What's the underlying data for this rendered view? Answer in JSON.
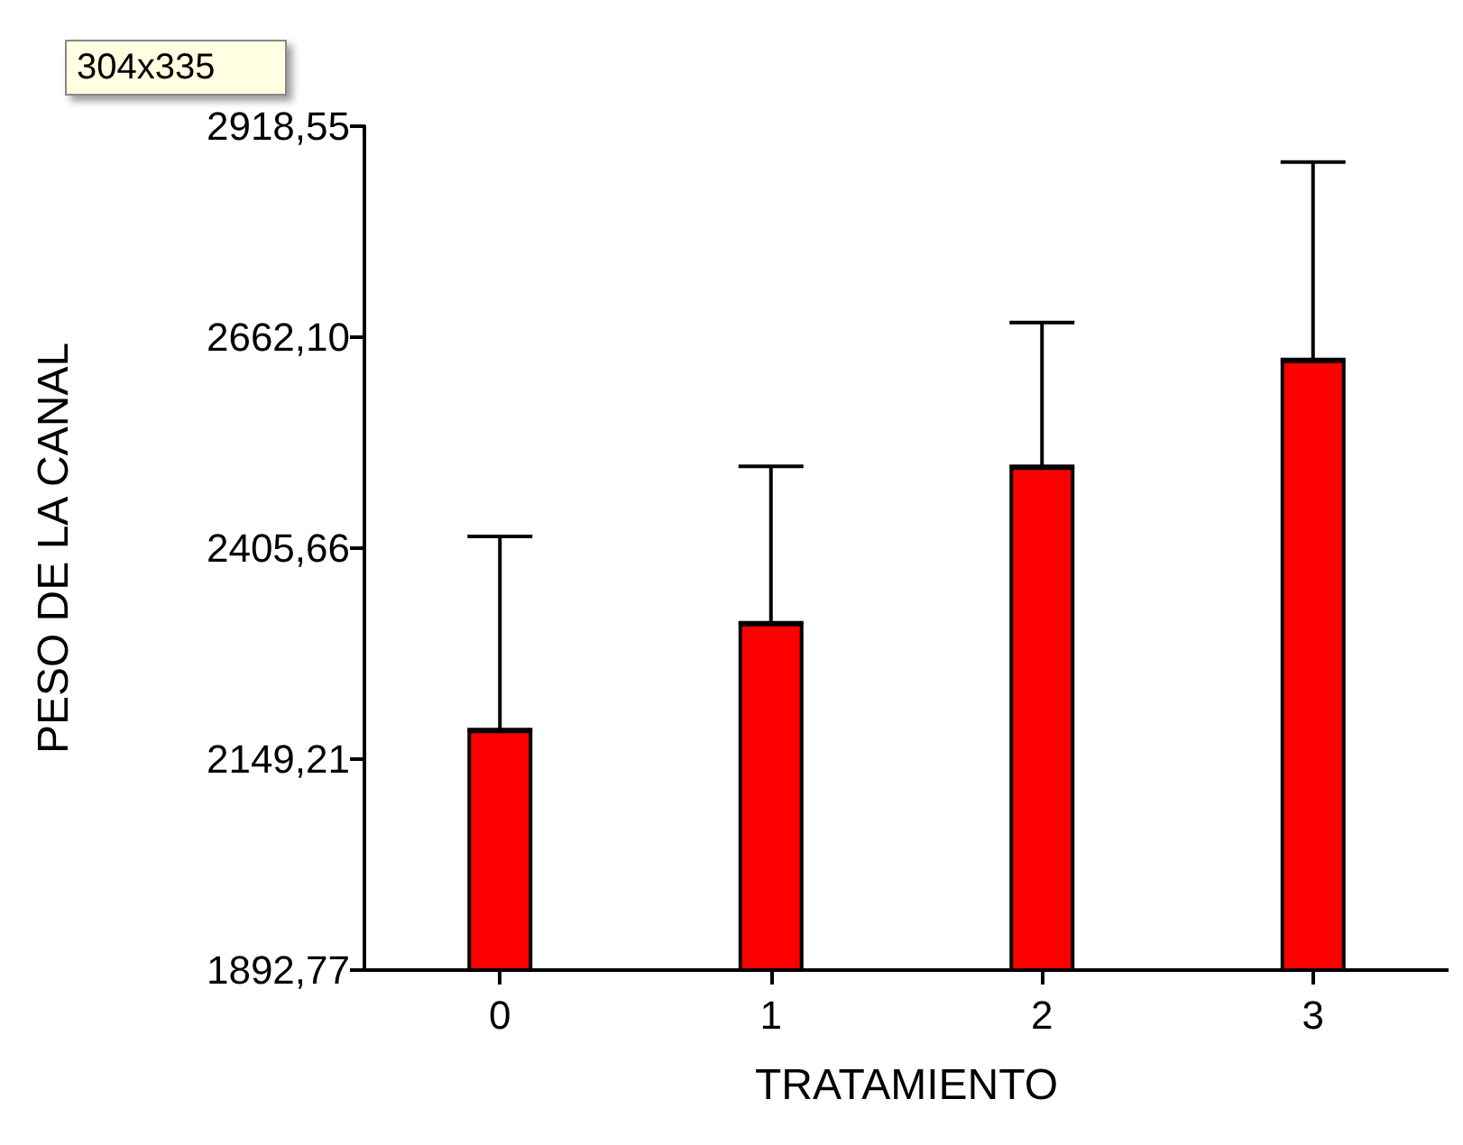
{
  "chart_data": {
    "type": "bar",
    "xlabel": "TRATAMIENTO",
    "ylabel": "PESO DE LA CANAL",
    "annotations": [
      "304x335"
    ],
    "categories": [
      "0",
      "1",
      "2",
      "3"
    ],
    "values": [
      2185,
      2315,
      2505,
      2635
    ],
    "errors": [
      [
        2185,
        2420
      ],
      [
        2315,
        2505
      ],
      [
        2505,
        2680
      ],
      [
        2635,
        2875
      ]
    ],
    "color": "#ff0000",
    "ylim": [
      1892.77,
      2918.55
    ],
    "yticks": [
      {
        "value": 1892.77,
        "label": "1892,77"
      },
      {
        "value": 2149.21,
        "label": "2149,21"
      },
      {
        "value": 2405.66,
        "label": "2405,66"
      },
      {
        "value": 2662.1,
        "label": "2662,10"
      },
      {
        "value": 2918.55,
        "label": "2918,55"
      }
    ],
    "grid": false
  }
}
